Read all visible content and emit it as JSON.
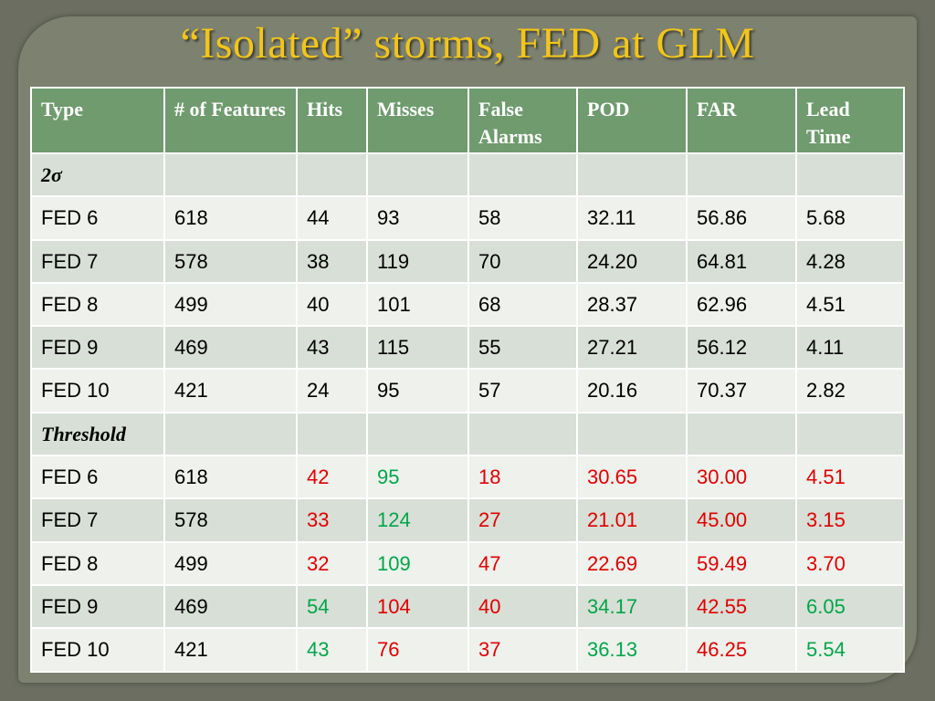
{
  "title": "“Isolated” storms, FED at GLM",
  "colors": {
    "red": "#e00000",
    "green": "#00a64a",
    "header_bg": "#6f9b6e",
    "title": "#f2c51a"
  },
  "table": {
    "headers": [
      "Type",
      "# of Features",
      "Hits",
      "Misses",
      "False Alarms",
      "POD",
      "FAR",
      "Lead Time"
    ],
    "rows": [
      {
        "section": true,
        "cells": [
          "2σ",
          "",
          "",
          "",
          "",
          "",
          "",
          ""
        ],
        "colors": [
          "",
          "",
          "",
          "",
          "",
          "",
          "",
          ""
        ]
      },
      {
        "cells": [
          "FED 6",
          "618",
          "44",
          "93",
          "58",
          "32.11",
          "56.86",
          "5.68"
        ],
        "colors": [
          "",
          "",
          "",
          "",
          "",
          "",
          "",
          ""
        ]
      },
      {
        "cells": [
          "FED 7",
          "578",
          "38",
          "119",
          "70",
          "24.20",
          "64.81",
          "4.28"
        ],
        "colors": [
          "",
          "",
          "",
          "",
          "",
          "",
          "",
          ""
        ]
      },
      {
        "cells": [
          "FED 8",
          "499",
          "40",
          "101",
          "68",
          "28.37",
          "62.96",
          "4.51"
        ],
        "colors": [
          "",
          "",
          "",
          "",
          "",
          "",
          "",
          ""
        ]
      },
      {
        "cells": [
          "FED 9",
          "469",
          "43",
          "115",
          "55",
          "27.21",
          "56.12",
          "4.11"
        ],
        "colors": [
          "",
          "",
          "",
          "",
          "",
          "",
          "",
          ""
        ]
      },
      {
        "cells": [
          "FED 10",
          "421",
          "24",
          "95",
          "57",
          "20.16",
          "70.37",
          "2.82"
        ],
        "colors": [
          "",
          "",
          "",
          "",
          "",
          "",
          "",
          ""
        ]
      },
      {
        "section": true,
        "cells": [
          "Threshold",
          "",
          "",
          "",
          "",
          "",
          "",
          ""
        ],
        "colors": [
          "",
          "",
          "",
          "",
          "",
          "",
          "",
          ""
        ]
      },
      {
        "cells": [
          "FED 6",
          "618",
          "42",
          "95",
          "18",
          "30.65",
          "30.00",
          "4.51"
        ],
        "colors": [
          "",
          "",
          "red",
          "green",
          "red",
          "red",
          "red",
          "red"
        ]
      },
      {
        "cells": [
          "FED 7",
          "578",
          "33",
          "124",
          "27",
          "21.01",
          "45.00",
          "3.15"
        ],
        "colors": [
          "",
          "",
          "red",
          "green",
          "red",
          "red",
          "red",
          "red"
        ]
      },
      {
        "cells": [
          "FED 8",
          "499",
          "32",
          "109",
          "47",
          "22.69",
          "59.49",
          "3.70"
        ],
        "colors": [
          "",
          "",
          "red",
          "green",
          "red",
          "red",
          "red",
          "red"
        ]
      },
      {
        "cells": [
          "FED 9",
          "469",
          "54",
          "104",
          "40",
          "34.17",
          "42.55",
          "6.05"
        ],
        "colors": [
          "",
          "",
          "green",
          "red",
          "red",
          "green",
          "red",
          "green"
        ]
      },
      {
        "cells": [
          "FED 10",
          "421",
          "43",
          "76",
          "37",
          "36.13",
          "46.25",
          "5.54"
        ],
        "colors": [
          "",
          "",
          "green",
          "red",
          "red",
          "green",
          "red",
          "green"
        ]
      }
    ]
  }
}
